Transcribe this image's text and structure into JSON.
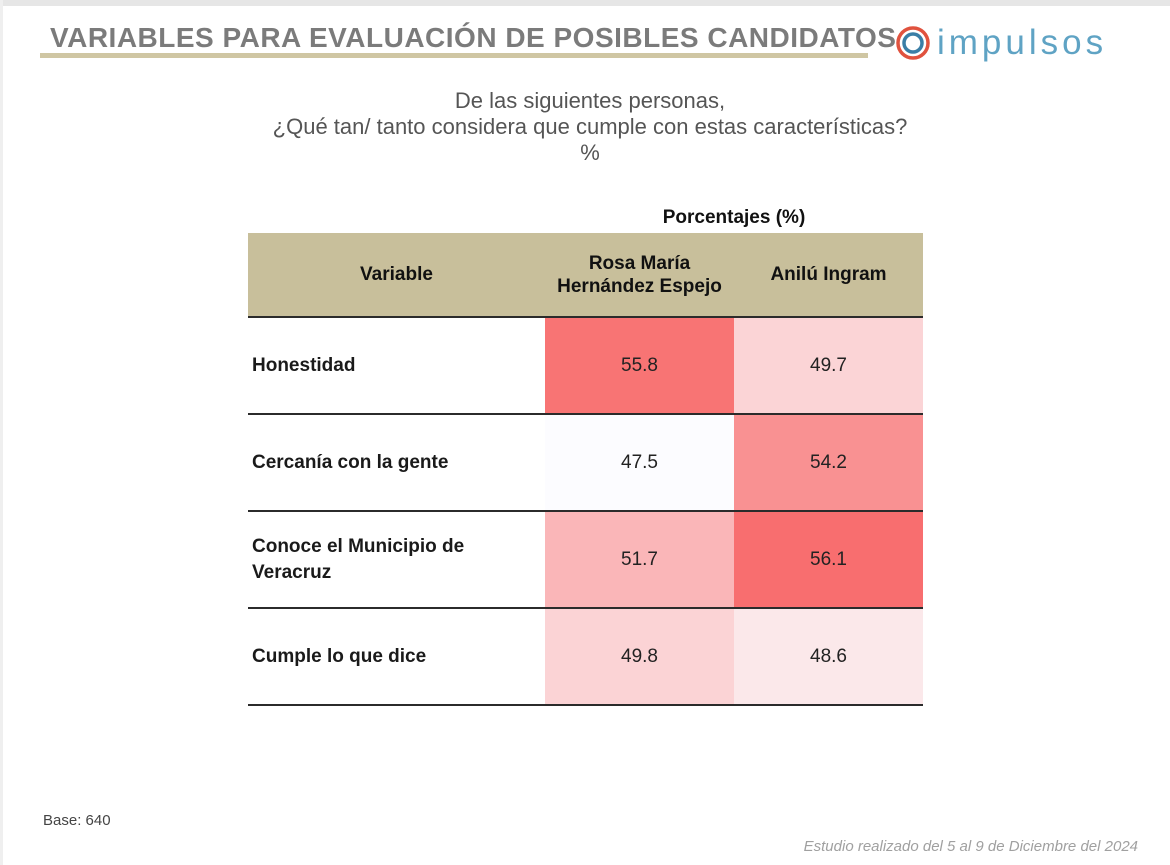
{
  "header": {
    "title": "VARIABLES PARA EVALUACIÓN DE POSIBLES CANDIDATOS",
    "logo_text": "impulsos"
  },
  "question": {
    "line1": "De las siguientes personas,",
    "line2": "¿Qué tan/ tanto considera que cumple con estas características?",
    "line3": "%"
  },
  "chart_data": {
    "type": "table",
    "group_header": "Porcentajes (%)",
    "columns": [
      "Variable",
      "Rosa María Hernández Espejo",
      "Anilú Ingram"
    ],
    "rows": [
      {
        "variable": "Honestidad",
        "values": [
          "55.8",
          "49.7"
        ],
        "fills": [
          "#f87474",
          "#fbd4d6"
        ]
      },
      {
        "variable": "Cercanía con la gente",
        "values": [
          "47.5",
          "54.2"
        ],
        "fills": [
          "#fcfcff",
          "#f99192"
        ]
      },
      {
        "variable": "Conoce el Municipio de Veracruz",
        "values": [
          "51.7",
          "56.1"
        ],
        "fills": [
          "#fab6b8",
          "#f86e6f"
        ]
      },
      {
        "variable": "Cumple lo que dice",
        "values": [
          "49.8",
          "48.6"
        ],
        "fills": [
          "#fbd3d5",
          "#fbe8ea"
        ]
      }
    ]
  },
  "footer": {
    "base": "Base: 640",
    "study": "Estudio realizado del 5 al 9 de Diciembre del 2024"
  },
  "colors": {
    "header_fill": "#c8bf9b",
    "title_underline": "#cfc6a3",
    "title_text": "#7b7b7b",
    "logo_ring_outer": "#e0523e",
    "logo_ring_inner": "#3a7ea6",
    "logo_text": "#5fa3c4"
  }
}
